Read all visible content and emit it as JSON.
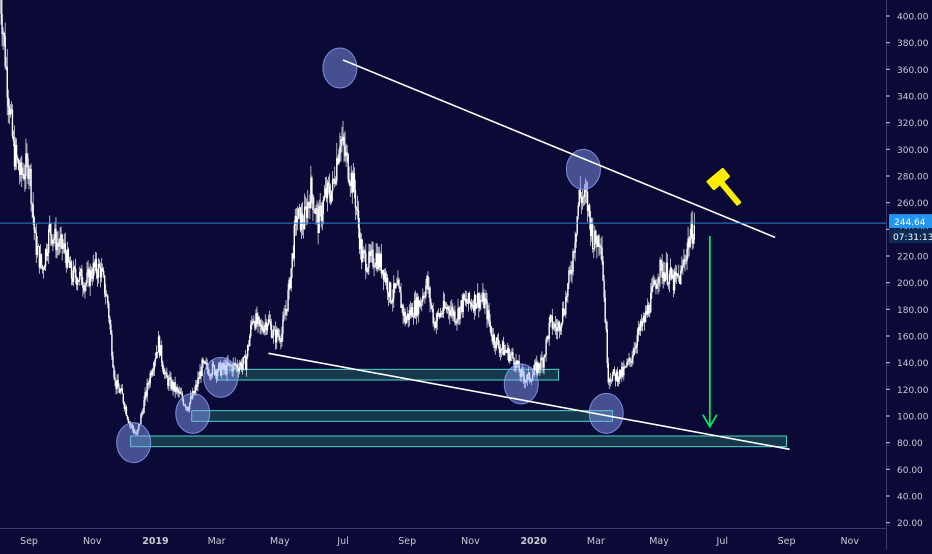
{
  "colors": {
    "background": "#0b0935",
    "axis_text": "#c9c9d6",
    "candle": "#ffffff",
    "trendline": "#ffffff",
    "support_box_fill": "#1f5f5f",
    "support_box_stroke": "#4fd6c8",
    "marker_circle": "#8ea6ff",
    "price_line": "#2f7fd4",
    "price_badge": "#2196f3",
    "countdown_badge": "#0d2a55",
    "target_arrow": "#00e65c",
    "gavel": "#ffee00"
  },
  "icons": {
    "gavel": "gavel-icon"
  },
  "chart_data": {
    "type": "candlestick",
    "title": "",
    "xlabel": "",
    "ylabel": "",
    "ylim": [
      16,
      412
    ],
    "xlim": [
      "2018-08-04",
      "2020-12-06"
    ],
    "grid": false,
    "price_axis": "right",
    "y_ticks": [
      "20.00",
      "40.00",
      "60.00",
      "80.00",
      "100.00",
      "120.00",
      "140.00",
      "160.00",
      "180.00",
      "200.00",
      "220.00",
      "240.00",
      "260.00",
      "280.00",
      "300.00",
      "320.00",
      "340.00",
      "360.00",
      "380.00",
      "400.00"
    ],
    "x_ticks": [
      {
        "label": "Sep",
        "date": "2018-09-01"
      },
      {
        "label": "Nov",
        "date": "2018-11-01"
      },
      {
        "label": "2019",
        "date": "2019-01-01"
      },
      {
        "label": "Mar",
        "date": "2019-03-01"
      },
      {
        "label": "May",
        "date": "2019-05-01"
      },
      {
        "label": "Jul",
        "date": "2019-07-01"
      },
      {
        "label": "Sep",
        "date": "2019-09-01"
      },
      {
        "label": "Nov",
        "date": "2019-11-01"
      },
      {
        "label": "2020",
        "date": "2020-01-01"
      },
      {
        "label": "Mar",
        "date": "2020-03-01"
      },
      {
        "label": "May",
        "date": "2020-05-01"
      },
      {
        "label": "Jul",
        "date": "2020-07-01"
      },
      {
        "label": "Sep",
        "date": "2020-09-01"
      },
      {
        "label": "Nov",
        "date": "2020-11-01"
      }
    ],
    "series": [
      {
        "values": [
          [
            "2018-08-04",
            420
          ],
          [
            "2018-08-10",
            360
          ],
          [
            "2018-08-17",
            300
          ],
          [
            "2018-08-24",
            280
          ],
          [
            "2018-09-01",
            290
          ],
          [
            "2018-09-07",
            230
          ],
          [
            "2018-09-14",
            210
          ],
          [
            "2018-09-21",
            240
          ],
          [
            "2018-09-28",
            230
          ],
          [
            "2018-10-05",
            225
          ],
          [
            "2018-10-12",
            205
          ],
          [
            "2018-10-19",
            205
          ],
          [
            "2018-10-26",
            200
          ],
          [
            "2018-11-02",
            210
          ],
          [
            "2018-11-09",
            210
          ],
          [
            "2018-11-16",
            185
          ],
          [
            "2018-11-23",
            125
          ],
          [
            "2018-11-30",
            115
          ],
          [
            "2018-12-07",
            95
          ],
          [
            "2018-12-14",
            85
          ],
          [
            "2018-12-21",
            110
          ],
          [
            "2018-12-28",
            135
          ],
          [
            "2019-01-04",
            155
          ],
          [
            "2019-01-11",
            128
          ],
          [
            "2019-01-18",
            122
          ],
          [
            "2019-01-25",
            115
          ],
          [
            "2019-02-01",
            107
          ],
          [
            "2019-02-08",
            118
          ],
          [
            "2019-02-15",
            137
          ],
          [
            "2019-02-22",
            135
          ],
          [
            "2019-03-01",
            135
          ],
          [
            "2019-03-08",
            135
          ],
          [
            "2019-03-15",
            137
          ],
          [
            "2019-03-22",
            138
          ],
          [
            "2019-03-29",
            140
          ],
          [
            "2019-04-05",
            175
          ],
          [
            "2019-04-12",
            165
          ],
          [
            "2019-04-19",
            172
          ],
          [
            "2019-04-26",
            160
          ],
          [
            "2019-05-03",
            162
          ],
          [
            "2019-05-10",
            195
          ],
          [
            "2019-05-17",
            250
          ],
          [
            "2019-05-24",
            245
          ],
          [
            "2019-05-31",
            270
          ],
          [
            "2019-06-07",
            245
          ],
          [
            "2019-06-14",
            265
          ],
          [
            "2019-06-21",
            270
          ],
          [
            "2019-06-28",
            310
          ],
          [
            "2019-07-05",
            290
          ],
          [
            "2019-07-12",
            270
          ],
          [
            "2019-07-19",
            220
          ],
          [
            "2019-07-26",
            215
          ],
          [
            "2019-08-02",
            220
          ],
          [
            "2019-08-09",
            210
          ],
          [
            "2019-08-16",
            190
          ],
          [
            "2019-08-23",
            195
          ],
          [
            "2019-08-30",
            172
          ],
          [
            "2019-09-06",
            180
          ],
          [
            "2019-09-13",
            185
          ],
          [
            "2019-09-20",
            200
          ],
          [
            "2019-09-27",
            170
          ],
          [
            "2019-10-04",
            178
          ],
          [
            "2019-10-11",
            182
          ],
          [
            "2019-10-18",
            175
          ],
          [
            "2019-10-25",
            185
          ],
          [
            "2019-11-01",
            185
          ],
          [
            "2019-11-08",
            188
          ],
          [
            "2019-11-15",
            185
          ],
          [
            "2019-11-22",
            160
          ],
          [
            "2019-11-29",
            152
          ],
          [
            "2019-12-06",
            148
          ],
          [
            "2019-12-13",
            143
          ],
          [
            "2019-12-20",
            130
          ],
          [
            "2019-12-27",
            128
          ],
          [
            "2020-01-03",
            135
          ],
          [
            "2020-01-10",
            142
          ],
          [
            "2020-01-17",
            170
          ],
          [
            "2020-01-24",
            165
          ],
          [
            "2020-01-31",
            183
          ],
          [
            "2020-02-07",
            215
          ],
          [
            "2020-02-14",
            265
          ],
          [
            "2020-02-21",
            262
          ],
          [
            "2020-02-28",
            230
          ],
          [
            "2020-03-06",
            235
          ],
          [
            "2020-03-13",
            130
          ],
          [
            "2020-03-20",
            130
          ],
          [
            "2020-03-27",
            132
          ],
          [
            "2020-04-03",
            141
          ],
          [
            "2020-04-10",
            160
          ],
          [
            "2020-04-17",
            172
          ],
          [
            "2020-04-24",
            190
          ],
          [
            "2020-05-01",
            210
          ],
          [
            "2020-05-08",
            208
          ],
          [
            "2020-05-15",
            200
          ],
          [
            "2020-05-22",
            205
          ],
          [
            "2020-05-29",
            230
          ],
          [
            "2020-06-05",
            245
          ]
        ]
      }
    ],
    "current_price": {
      "value": 244.64,
      "label": "244.64",
      "countdown": "07:31:13"
    },
    "trendlines": [
      {
        "from": [
          "2019-07-01",
          367
        ],
        "to": [
          "2020-08-21",
          234
        ]
      },
      {
        "from": [
          "2019-04-20",
          147
        ],
        "to": [
          "2020-09-04",
          75
        ]
      }
    ],
    "support_zones": [
      {
        "from": "2019-03-01",
        "to": "2020-01-25",
        "low": 127,
        "high": 135
      },
      {
        "from": "2019-02-05",
        "to": "2020-03-17",
        "low": 96,
        "high": 104
      },
      {
        "from": "2018-12-08",
        "to": "2020-09-01",
        "low": 77,
        "high": 85
      }
    ],
    "highlight_markers": [
      {
        "date": "2019-06-28",
        "value": 361
      },
      {
        "date": "2020-02-18",
        "value": 285
      },
      {
        "date": "2018-12-11",
        "value": 80
      },
      {
        "date": "2019-02-06",
        "value": 102
      },
      {
        "date": "2019-03-05",
        "value": 129
      },
      {
        "date": "2019-12-20",
        "value": 124
      },
      {
        "date": "2020-03-11",
        "value": 102
      }
    ],
    "target_arrow": {
      "date": "2020-06-19",
      "from": 235,
      "to": 92
    }
  }
}
